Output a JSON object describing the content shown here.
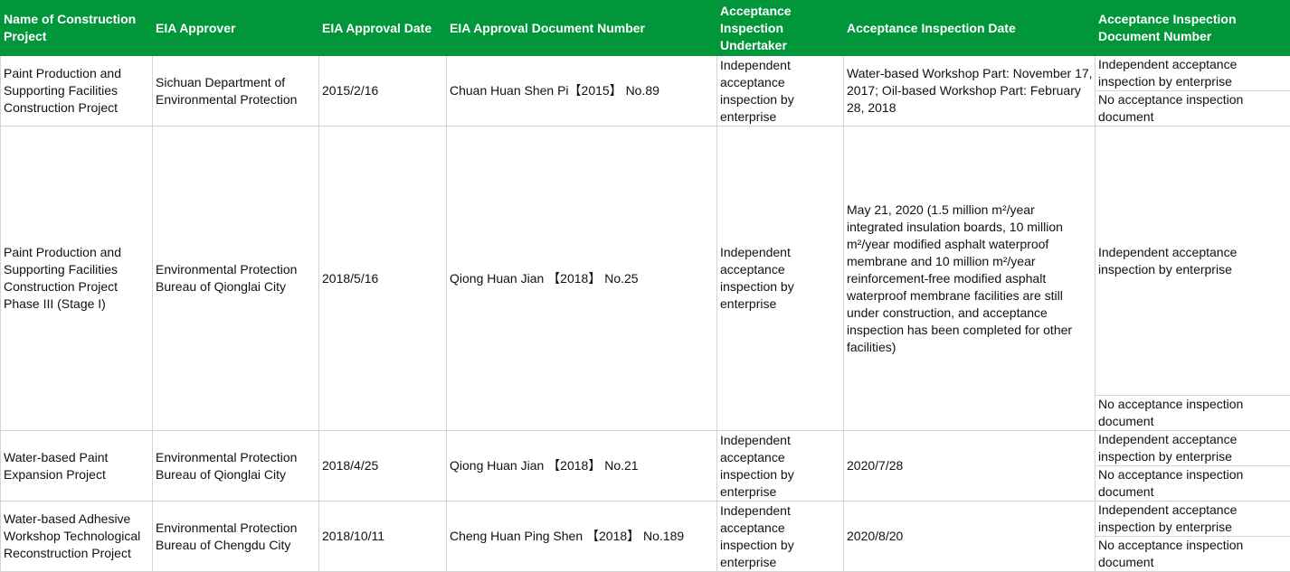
{
  "header": [
    "Name of Construction Project",
    "EIA Approver",
    "EIA Approval Date",
    "EIA Approval Document Number",
    "Acceptance Inspection Undertaker",
    "Acceptance Inspection Date",
    "Acceptance Inspection Document Number"
  ],
  "rows": [
    {
      "name": "Paint Production and Supporting Facilities Construction Project",
      "approver": "Sichuan Department of Environmental Protection",
      "date": "2015/2/16",
      "doc": "Chuan Huan Shen Pi【2015】 No.89",
      "undertaker": "Independent acceptance inspection by enterprise",
      "inspection_date": "Water-based Workshop Part: November 17, 2017; Oil-based Workshop Part: February 28, 2018",
      "inspection_docs": [
        "Independent acceptance inspection by enterprise",
        "No acceptance inspection document"
      ]
    },
    {
      "name": "Paint Production and Supporting Facilities Construction Project Phase III (Stage I)",
      "approver": "Environmental Protection Bureau of Qionglai City",
      "date": "2018/5/16",
      "doc": "Qiong Huan Jian 【2018】 No.25",
      "undertaker": "Independent acceptance inspection by enterprise",
      "inspection_date": "May 21, 2020 (1.5 million m²/year integrated insulation boards, 10 million m²/year modified asphalt waterproof membrane and 10 million m²/year reinforcement-free modified asphalt waterproof membrane facilities are still under construction, and acceptance inspection has been completed for other facilities)",
      "inspection_docs": [
        "Independent acceptance inspection by enterprise",
        "No acceptance inspection document"
      ]
    },
    {
      "name": "Water-based Paint Expansion Project",
      "approver": "Environmental Protection Bureau of Qionglai City",
      "date": "2018/4/25",
      "doc": "Qiong Huan Jian 【2018】 No.21",
      "undertaker": "Independent acceptance inspection by enterprise",
      "inspection_date": "2020/7/28",
      "inspection_docs": [
        "Independent acceptance inspection by enterprise",
        "No acceptance inspection document"
      ]
    },
    {
      "name": "Water-based Adhesive Workshop Technological Reconstruction Project",
      "approver": "Environmental Protection Bureau of Chengdu City",
      "date": "2018/10/11",
      "doc": "Cheng Huan Ping Shen 【2018】 No.189",
      "undertaker": "Independent acceptance inspection by enterprise",
      "inspection_date": "2020/8/20",
      "inspection_docs": [
        "Independent acceptance inspection by enterprise",
        "No acceptance inspection document"
      ]
    }
  ],
  "colors": {
    "header_bg": "#009639",
    "header_text": "#ffffff",
    "grid": "#d4d4d4"
  }
}
